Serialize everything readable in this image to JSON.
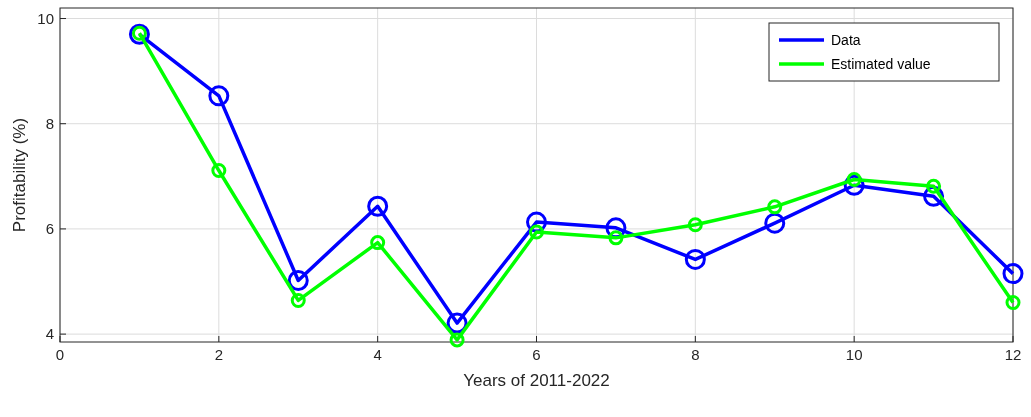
{
  "chart_data": {
    "type": "line",
    "xlabel": "Years of 2011-2022",
    "ylabel": "Profitability (%)",
    "x": [
      1,
      2,
      3,
      4,
      5,
      6,
      7,
      8,
      9,
      10,
      11,
      12
    ],
    "series": [
      {
        "name": "Data",
        "color": "#0000ff",
        "values": [
          9.7,
          8.53,
          5.02,
          6.43,
          4.21,
          6.13,
          6.02,
          5.42,
          6.11,
          6.83,
          6.62,
          5.15
        ]
      },
      {
        "name": "Estimated value",
        "color": "#00ff00",
        "values": [
          9.72,
          7.11,
          4.64,
          5.74,
          3.89,
          5.94,
          5.83,
          6.08,
          6.42,
          6.94,
          6.81,
          4.6
        ]
      }
    ],
    "xlim": [
      0,
      12
    ],
    "xticks": [
      0,
      2,
      4,
      6,
      8,
      10,
      12
    ],
    "ylim": [
      3.85,
      10.2
    ],
    "yticks": [
      4,
      6,
      8,
      10
    ],
    "grid": true,
    "legend": "top right",
    "marker": "circle",
    "line_style": "solid"
  }
}
